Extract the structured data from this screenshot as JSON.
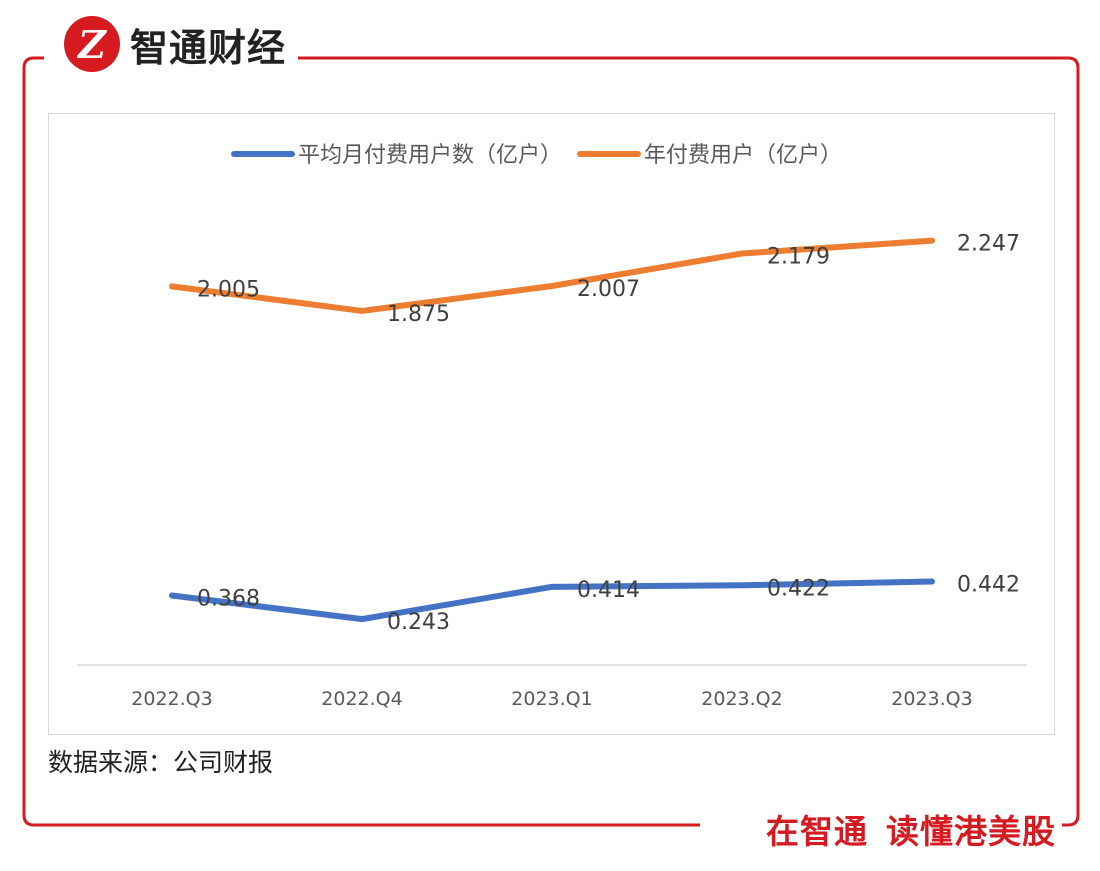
{
  "brand": {
    "logo_glyph": "Z",
    "name": "智通财经",
    "accent_color": "#d51a20"
  },
  "source_note": "数据来源：公司财报",
  "slogan": {
    "part1": "在智通",
    "part2": "读懂港美股"
  },
  "chart_data": {
    "type": "line",
    "title": "",
    "categories": [
      "2022.Q3",
      "2022.Q4",
      "2023.Q1",
      "2023.Q2",
      "2023.Q3"
    ],
    "series": [
      {
        "name": "平均月付费用户数（亿户）",
        "color": "#4472c4",
        "values": [
          0.368,
          0.243,
          0.414,
          0.422,
          0.442
        ]
      },
      {
        "name": "年付费用户（亿户）",
        "color": "#ed7d31",
        "values": [
          2.005,
          1.875,
          2.007,
          2.179,
          2.247
        ]
      }
    ],
    "xlabel": "",
    "ylabel": "",
    "ylim": [
      0,
      2.6
    ],
    "grid": false,
    "legend": "top-center"
  }
}
